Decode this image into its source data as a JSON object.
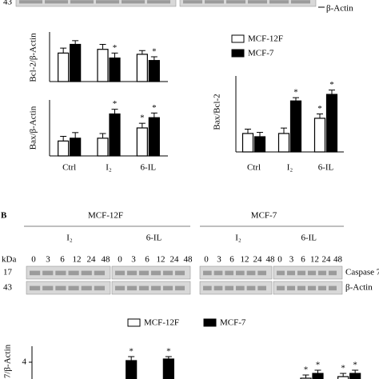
{
  "chart_data": [
    {
      "type": "bar",
      "y_label": "Bcl-2/β-Actin",
      "categories": [
        null,
        null,
        null
      ],
      "ylim": [
        0,
        2
      ],
      "series": [
        {
          "color": "#ffffff",
          "values": [
            1.15,
            1.3,
            1.1
          ],
          "errors": [
            0.2,
            0.2,
            0.15
          ],
          "stars": [
            null,
            null,
            null
          ]
        },
        {
          "color": "#000000",
          "values": [
            1.5,
            0.95,
            0.85
          ],
          "errors": [
            0.15,
            0.2,
            0.15
          ],
          "stars": [
            null,
            "*",
            "*"
          ]
        }
      ]
    },
    {
      "type": "bar",
      "y_label": "Bax/β-Actin",
      "categories": [
        "Ctrl",
        "I₂",
        "6-IL"
      ],
      "ylim": [
        0,
        6
      ],
      "series": [
        {
          "color": "#ffffff",
          "values": [
            1.6,
            1.9,
            3.0
          ],
          "errors": [
            0.5,
            0.5,
            0.5
          ],
          "stars": [
            null,
            null,
            "*"
          ]
        },
        {
          "color": "#000000",
          "values": [
            1.9,
            4.5,
            4.1
          ],
          "errors": [
            0.6,
            0.5,
            0.5
          ],
          "stars": [
            null,
            "*",
            "*"
          ]
        }
      ]
    },
    {
      "type": "bar",
      "y_label": "Bax/Bcl-2",
      "categories": [
        "Ctrl",
        "I₂",
        "6-IL"
      ],
      "ylim": [
        0,
        7
      ],
      "legend": true,
      "series": [
        {
          "name": "MCF-12F",
          "color": "#ffffff",
          "values": [
            1.7,
            1.7,
            3.1
          ],
          "errors": [
            0.4,
            0.5,
            0.4
          ],
          "stars": [
            null,
            null,
            "*"
          ]
        },
        {
          "name": "MCF-7",
          "color": "#000000",
          "values": [
            1.4,
            4.7,
            5.3
          ],
          "errors": [
            0.4,
            0.3,
            0.4
          ],
          "stars": [
            null,
            "*",
            "*"
          ]
        }
      ]
    },
    {
      "type": "bar",
      "y_label": "7/β-Actin",
      "categories": [
        null,
        null,
        null,
        null,
        null,
        null,
        null,
        null,
        null
      ],
      "ylim": [
        2,
        5
      ],
      "yticks": [
        4
      ],
      "legend": true,
      "series": [
        {
          "name": "MCF-12F",
          "color": "#ffffff",
          "values": [
            null,
            null,
            null,
            null,
            null,
            null,
            null,
            3.0,
            3.1
          ],
          "errors": [
            null,
            null,
            null,
            null,
            null,
            null,
            null,
            0.2,
            0.2
          ],
          "stars": [
            null,
            null,
            null,
            null,
            null,
            null,
            null,
            "*",
            "*"
          ]
        },
        {
          "name": "MCF-7",
          "color": "#000000",
          "values": [
            null,
            null,
            4.1,
            4.2,
            null,
            null,
            null,
            3.3,
            3.3
          ],
          "errors": [
            null,
            null,
            0.25,
            0.15,
            null,
            null,
            null,
            0.2,
            0.2
          ],
          "stars": [
            null,
            null,
            "*",
            "*",
            null,
            null,
            null,
            "*",
            "*"
          ]
        }
      ]
    }
  ],
  "figure": {
    "top_blot": {
      "kda": "43",
      "label": "β-Actin"
    },
    "panel_b": {
      "letter": "B",
      "cell_lines": [
        "MCF-12F",
        "MCF-7"
      ],
      "treatments": [
        "I₂",
        "6-IL"
      ],
      "kda_label": "kDa",
      "lanes": [
        0,
        3,
        6,
        12,
        24,
        48
      ],
      "rows": [
        {
          "kda": "17",
          "label": "Caspase 7"
        },
        {
          "kda": "43",
          "label": "β-Actin"
        }
      ]
    }
  }
}
